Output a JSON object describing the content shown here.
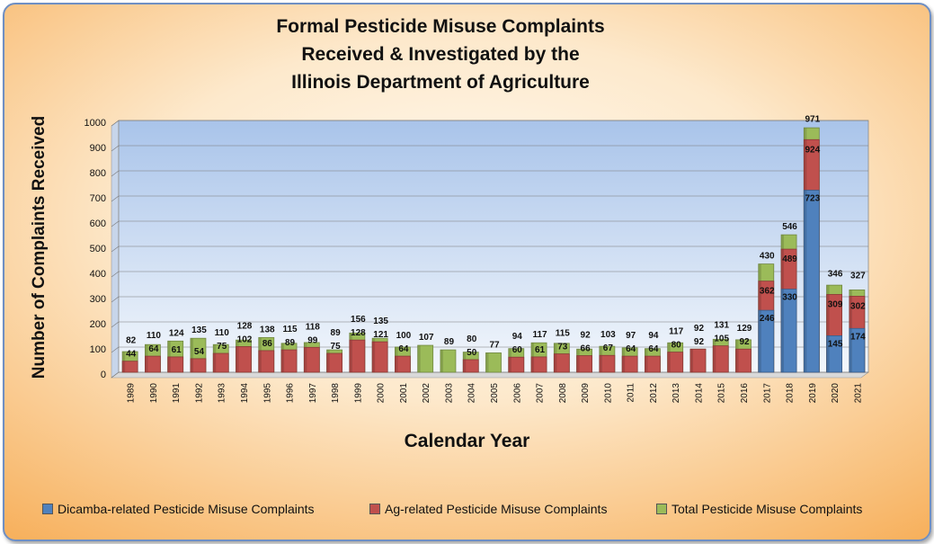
{
  "chart_data": {
    "type": "bar",
    "title_lines": [
      "Formal Pesticide Misuse Complaints",
      "Received & Investigated by the",
      "Illinois Department of Agriculture"
    ],
    "xlabel": "Calendar Year",
    "ylabel": "Number of Complaints Received",
    "ylim": [
      0,
      1000
    ],
    "yticks": [
      "0",
      "100",
      "200",
      "300",
      "400",
      "500",
      "600",
      "700",
      "800",
      "900",
      "1000"
    ],
    "grid": true,
    "legend_position": "bottom",
    "categories": [
      "1989",
      "1990",
      "1991",
      "1992",
      "1993",
      "1994",
      "1995",
      "1996",
      "1997",
      "1998",
      "1999",
      "2000",
      "2001",
      "2002",
      "2003",
      "2004",
      "2005",
      "2006",
      "2007",
      "2008",
      "2009",
      "2010",
      "2011",
      "2012",
      "2013",
      "2014",
      "2015",
      "2016",
      "2017",
      "2018",
      "2019",
      "2020",
      "2021"
    ],
    "series": [
      {
        "name": "Dicamba-related Pesticide Misuse Complaints",
        "color": "#4f81bd",
        "values": [
          null,
          null,
          null,
          null,
          null,
          null,
          null,
          null,
          null,
          null,
          null,
          null,
          null,
          null,
          null,
          null,
          null,
          null,
          null,
          null,
          null,
          null,
          null,
          null,
          null,
          null,
          null,
          null,
          246,
          330,
          723,
          145,
          174
        ]
      },
      {
        "name": "Ag-related Pesticide Misuse Complaints",
        "color": "#c0504d",
        "values": [
          44,
          64,
          61,
          54,
          75,
          102,
          86,
          89,
          99,
          75,
          128,
          121,
          64,
          null,
          null,
          50,
          null,
          60,
          61,
          73,
          66,
          67,
          64,
          64,
          80,
          92,
          105,
          92,
          362,
          489,
          924,
          309,
          302
        ]
      },
      {
        "name": "Total Pesticide Misuse Complaints",
        "color": "#9bbb59",
        "values": [
          82,
          110,
          124,
          135,
          110,
          128,
          138,
          115,
          118,
          89,
          156,
          135,
          100,
          107,
          89,
          80,
          77,
          94,
          117,
          115,
          92,
          103,
          97,
          94,
          117,
          92,
          131,
          129,
          430,
          546,
          971,
          346,
          327
        ]
      }
    ]
  }
}
